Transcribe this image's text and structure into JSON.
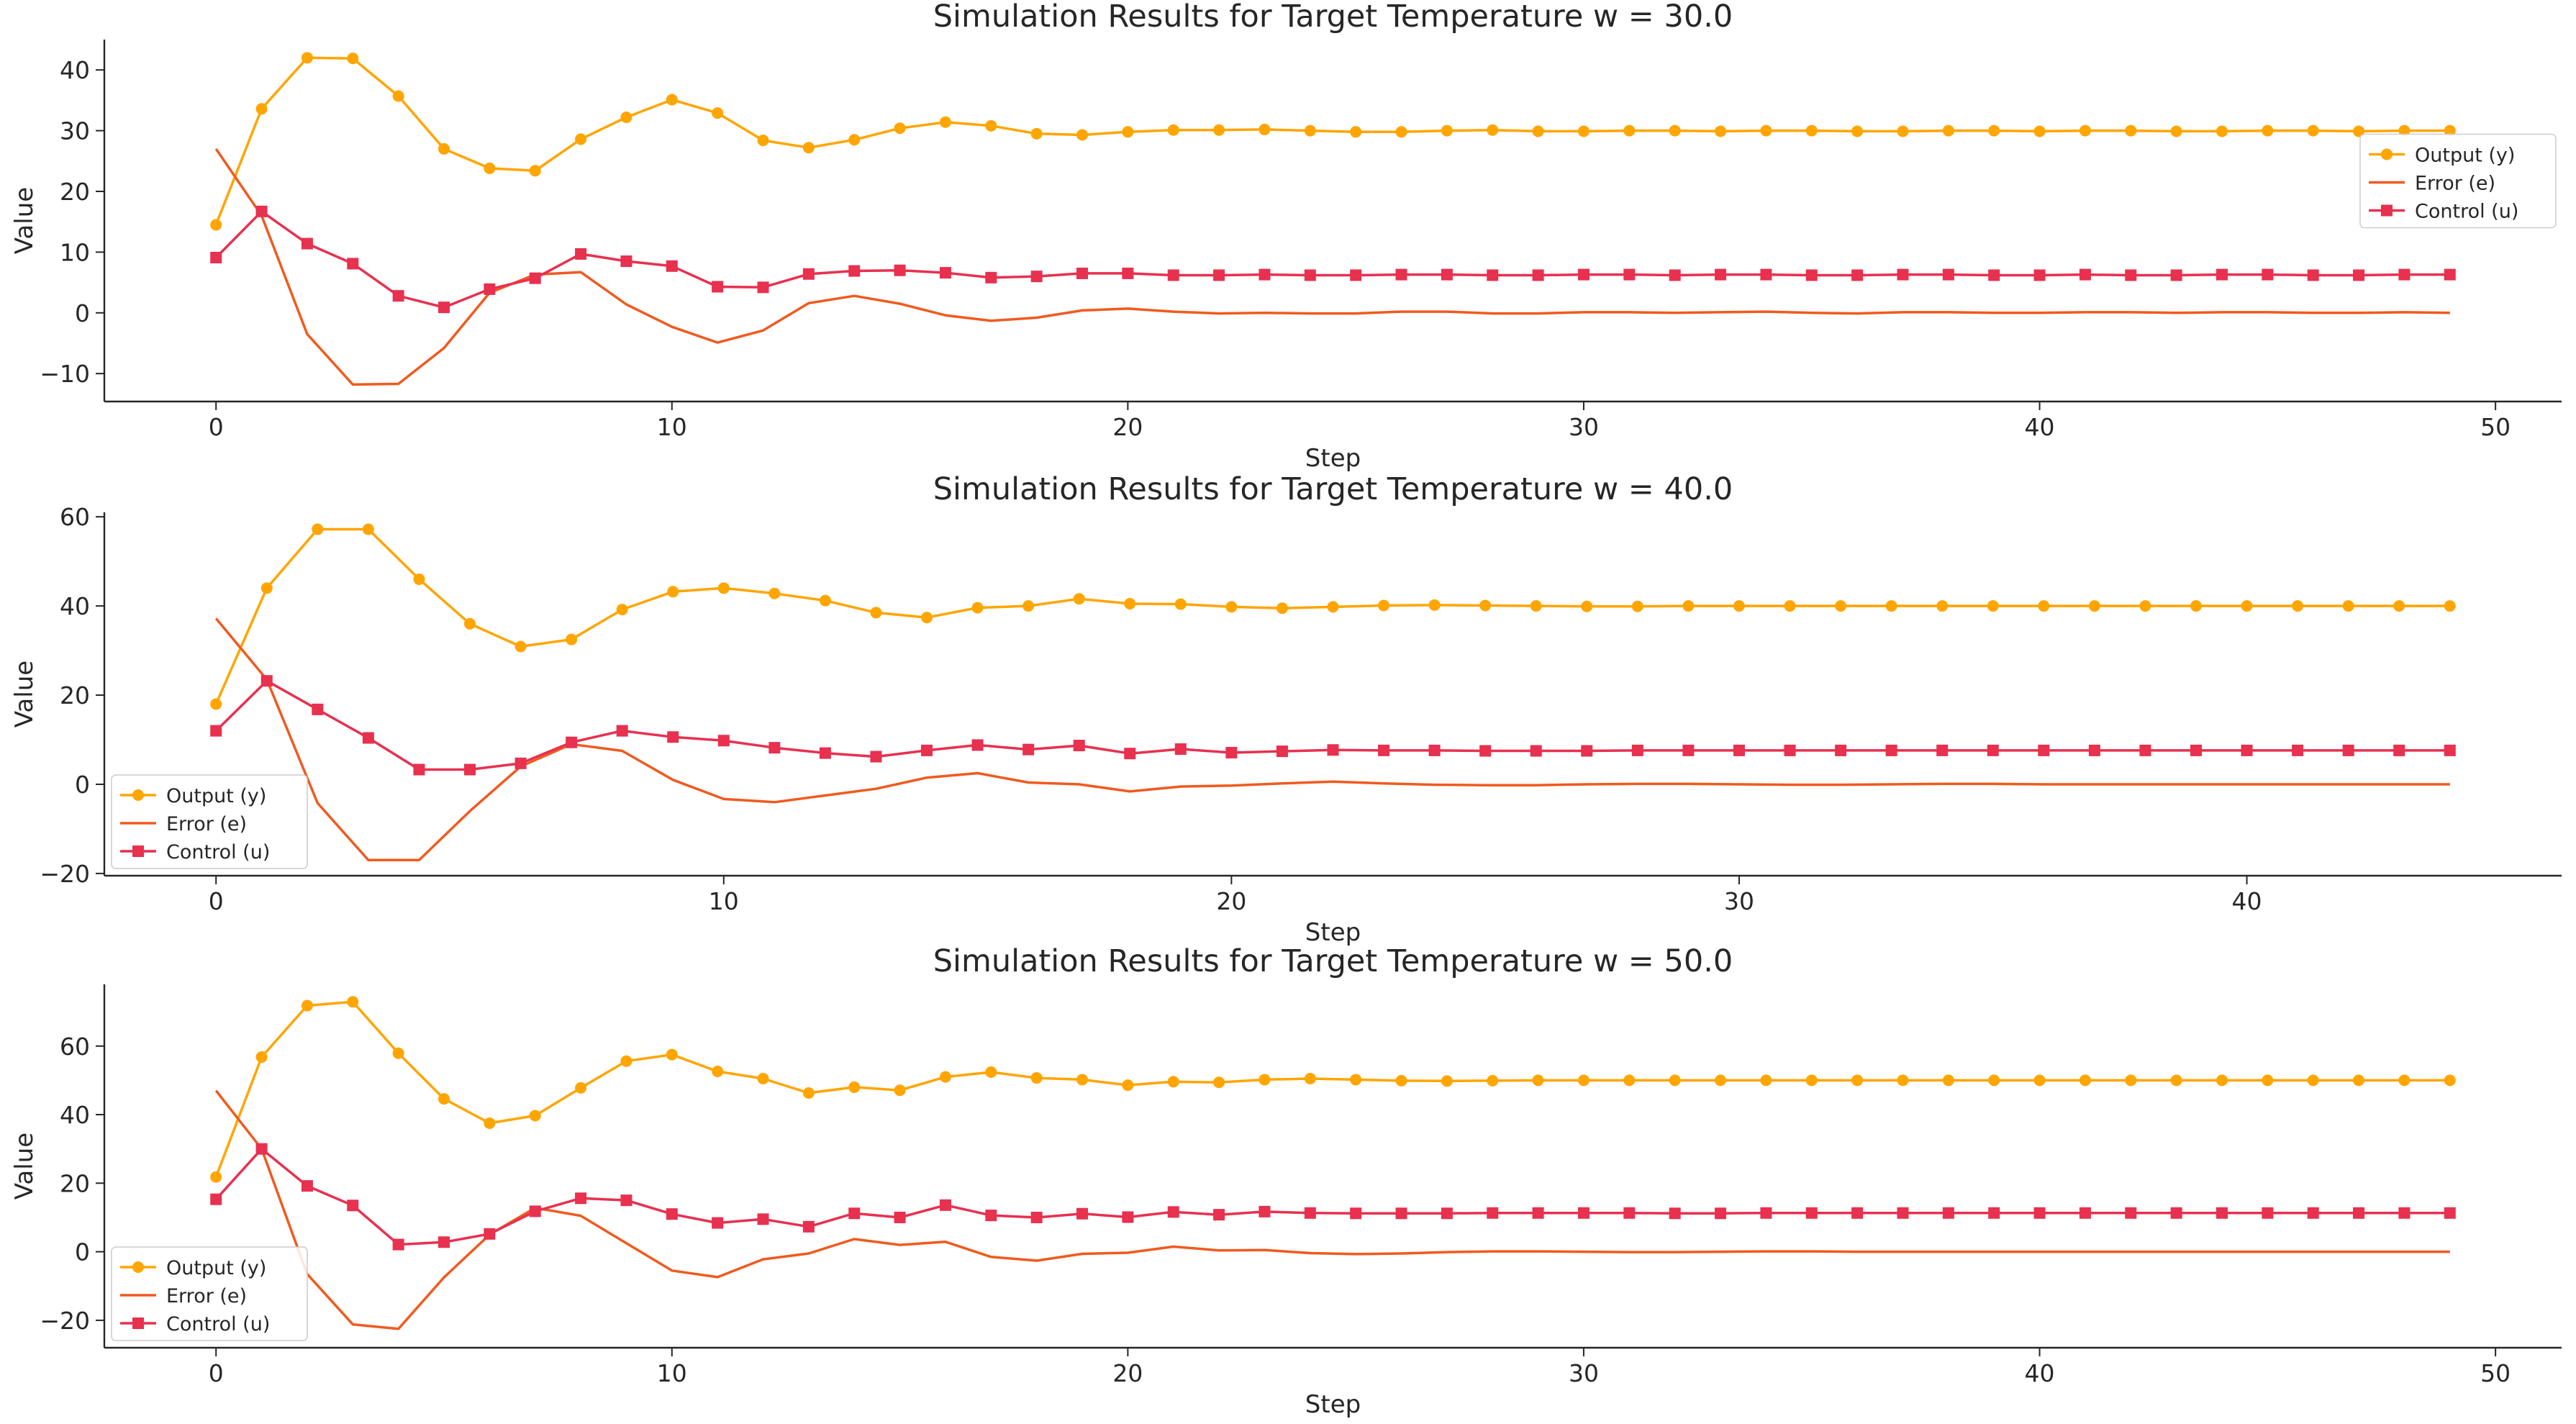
{
  "colors": {
    "output": "#FFA500",
    "error": "#F05A1E",
    "control": "#E8304F",
    "axis": "#262626"
  },
  "chart_data": [
    {
      "type": "line",
      "title": "Simulation Results for Target Temperature w = 30.0",
      "xlabel": "Step",
      "ylabel": "Value",
      "xlim": [
        -2.45,
        51.45
      ],
      "ylim": [
        -14.6,
        45
      ],
      "xticks": [
        0,
        10,
        20,
        30,
        40,
        50
      ],
      "yticks": [
        -10,
        0,
        10,
        20,
        30,
        40
      ],
      "legend": "center-right",
      "series": [
        {
          "name": "Output (y)",
          "marker": "circle",
          "values": [
            14.5,
            33.6,
            42.0,
            41.9,
            35.7,
            27.0,
            23.8,
            23.4,
            28.6,
            32.2,
            35.1,
            32.9,
            28.4,
            27.2,
            28.5,
            30.4,
            31.4,
            30.8,
            29.5,
            29.3,
            29.8,
            30.1,
            30.1,
            30.2,
            30.0,
            29.8,
            29.8,
            30.0,
            30.1,
            29.9,
            29.9,
            30.0,
            30.0,
            29.9,
            30.0,
            30.0,
            29.9,
            29.9,
            30.0,
            30.0,
            29.9,
            30.0,
            30.0,
            29.9,
            29.9,
            30.0,
            30.0,
            29.9,
            30.0,
            30.0
          ]
        },
        {
          "name": "Error (e)",
          "marker": "none",
          "values": [
            27.0,
            16.0,
            -3.5,
            -11.8,
            -11.7,
            -5.8,
            3.3,
            6.3,
            6.7,
            1.4,
            -2.3,
            -4.9,
            -2.9,
            1.6,
            2.8,
            1.5,
            -0.4,
            -1.3,
            -0.8,
            0.4,
            0.7,
            0.2,
            -0.1,
            0.0,
            -0.1,
            -0.1,
            0.2,
            0.2,
            -0.1,
            -0.1,
            0.1,
            0.1,
            0.0,
            0.1,
            0.2,
            0.0,
            -0.1,
            0.1,
            0.1,
            0.0,
            0.0,
            0.1,
            0.1,
            0.0,
            0.1,
            0.1,
            0.0,
            0.0,
            0.1,
            0.0
          ]
        },
        {
          "name": "Control (u)",
          "marker": "square",
          "values": [
            9.1,
            16.7,
            11.4,
            8.1,
            2.8,
            0.9,
            3.9,
            5.7,
            9.7,
            8.5,
            7.7,
            4.3,
            4.2,
            6.4,
            6.9,
            7.0,
            6.6,
            5.8,
            6.0,
            6.5,
            6.5,
            6.2,
            6.2,
            6.3,
            6.2,
            6.2,
            6.3,
            6.3,
            6.2,
            6.2,
            6.3,
            6.3,
            6.2,
            6.3,
            6.3,
            6.2,
            6.2,
            6.3,
            6.3,
            6.2,
            6.2,
            6.3,
            6.2,
            6.2,
            6.3,
            6.3,
            6.2,
            6.2,
            6.3,
            6.3
          ]
        }
      ]
    },
    {
      "type": "line",
      "title": "Simulation Results for Target Temperature w = 40.0",
      "xlabel": "Step",
      "ylabel": "Value",
      "xlim": [
        -2.2,
        46.2
      ],
      "ylim": [
        -20.5,
        61
      ],
      "xticks": [
        0,
        10,
        20,
        30,
        40
      ],
      "yticks": [
        -20,
        0,
        20,
        40,
        60
      ],
      "legend": "lower-left",
      "series": [
        {
          "name": "Output (y)",
          "marker": "circle",
          "values": [
            18.0,
            44.0,
            57.2,
            57.2,
            46.0,
            36.0,
            30.9,
            32.5,
            39.2,
            43.2,
            44.0,
            42.8,
            41.2,
            38.5,
            37.4,
            39.6,
            40.0,
            41.6,
            40.5,
            40.4,
            39.8,
            39.5,
            39.8,
            40.1,
            40.2,
            40.1,
            40.0,
            39.9,
            39.9,
            40.0,
            40.0,
            40.0,
            40.0,
            40.0,
            40.0,
            40.0,
            40.0,
            40.0,
            40.0,
            40.0,
            40.0,
            40.0,
            40.0,
            40.0,
            40.0
          ]
        },
        {
          "name": "Error (e)",
          "marker": "none",
          "values": [
            37.2,
            23.5,
            -4.2,
            -17.0,
            -17.0,
            -6.0,
            4.0,
            9.0,
            7.5,
            1.0,
            -3.3,
            -4.0,
            -2.5,
            -1.0,
            1.5,
            2.5,
            0.4,
            0.0,
            -1.6,
            -0.5,
            -0.3,
            0.2,
            0.6,
            0.2,
            -0.1,
            -0.2,
            -0.2,
            0.0,
            0.1,
            0.1,
            0.0,
            -0.1,
            -0.1,
            0.0,
            0.1,
            0.1,
            0.0,
            0.0,
            0.0,
            0.0,
            0.0,
            0.0,
            0.0,
            0.0,
            0.0
          ]
        },
        {
          "name": "Control (u)",
          "marker": "square",
          "values": [
            12.0,
            23.2,
            16.8,
            10.4,
            3.3,
            3.3,
            4.7,
            9.4,
            12.0,
            10.6,
            9.8,
            8.2,
            7.0,
            6.2,
            7.6,
            8.8,
            7.8,
            8.7,
            6.9,
            7.9,
            7.1,
            7.4,
            7.7,
            7.6,
            7.6,
            7.5,
            7.5,
            7.5,
            7.6,
            7.6,
            7.6,
            7.6,
            7.6,
            7.6,
            7.6,
            7.6,
            7.6,
            7.6,
            7.6,
            7.6,
            7.6,
            7.6,
            7.6,
            7.6,
            7.6
          ]
        }
      ]
    },
    {
      "type": "line",
      "title": "Simulation Results for Target Temperature w = 50.0",
      "xlabel": "Step",
      "ylabel": "Value",
      "xlim": [
        -2.45,
        51.45
      ],
      "ylim": [
        -28,
        78
      ],
      "xticks": [
        0,
        10,
        20,
        30,
        40,
        50
      ],
      "yticks": [
        -20,
        0,
        20,
        40,
        60
      ],
      "legend": "lower-left",
      "series": [
        {
          "name": "Output (y)",
          "marker": "circle",
          "values": [
            21.8,
            56.8,
            71.8,
            72.9,
            57.9,
            44.6,
            37.5,
            39.7,
            47.8,
            55.6,
            57.5,
            52.6,
            50.5,
            46.3,
            48.0,
            47.1,
            51.0,
            52.4,
            50.7,
            50.2,
            48.6,
            49.6,
            49.4,
            50.2,
            50.5,
            50.2,
            49.9,
            49.8,
            49.9,
            50.0,
            50.0,
            50.0,
            50.0,
            50.0,
            50.0,
            50.0,
            50.0,
            50.0,
            50.0,
            50.0,
            50.0,
            50.0,
            50.0,
            50.0,
            50.0,
            50.0,
            50.0,
            50.0,
            50.0,
            50.0
          ]
        },
        {
          "name": "Error (e)",
          "marker": "none",
          "values": [
            47.0,
            30.0,
            -6.5,
            -21.2,
            -22.5,
            -7.5,
            5.0,
            12.8,
            10.5,
            2.5,
            -5.5,
            -7.4,
            -2.2,
            -0.5,
            3.7,
            2.0,
            2.9,
            -1.5,
            -2.6,
            -0.6,
            -0.3,
            1.5,
            0.4,
            0.5,
            -0.4,
            -0.7,
            -0.5,
            -0.1,
            0.1,
            0.1,
            0.0,
            -0.1,
            -0.1,
            0.0,
            0.1,
            0.1,
            0.0,
            0.0,
            0.0,
            0.0,
            0.0,
            0.0,
            0.0,
            0.0,
            0.0,
            0.0,
            0.0,
            0.0,
            0.0,
            0.0
          ]
        },
        {
          "name": "Control (u)",
          "marker": "square",
          "values": [
            15.3,
            30.0,
            19.2,
            13.5,
            2.1,
            2.8,
            5.2,
            11.8,
            15.6,
            15.0,
            11.0,
            8.4,
            9.5,
            7.3,
            11.2,
            10.0,
            13.6,
            10.6,
            10.0,
            11.1,
            10.1,
            11.6,
            10.8,
            11.7,
            11.3,
            11.2,
            11.2,
            11.2,
            11.3,
            11.3,
            11.3,
            11.3,
            11.2,
            11.2,
            11.3,
            11.3,
            11.3,
            11.3,
            11.3,
            11.3,
            11.3,
            11.3,
            11.3,
            11.3,
            11.3,
            11.3,
            11.3,
            11.3,
            11.3,
            11.3
          ]
        }
      ]
    }
  ]
}
